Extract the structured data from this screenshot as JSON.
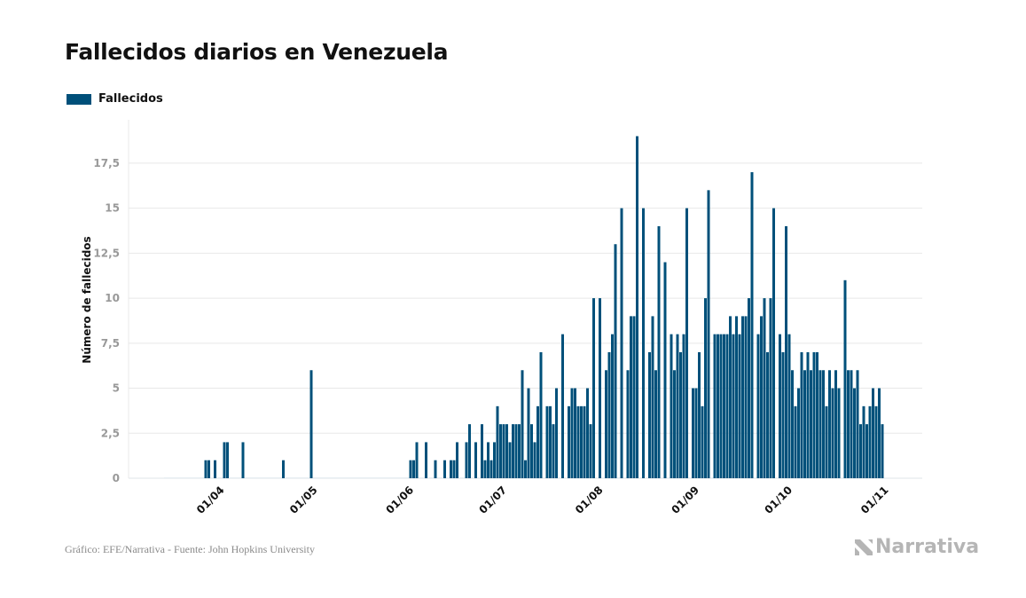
{
  "header": {
    "title": "Fallecidos diarios en Venezuela"
  },
  "footer": {
    "source": "Gráfico: EFE/Narrativa - Fuente: John Hopkins University",
    "logo": "Narrativa"
  },
  "colors": {
    "bar": "#00507a",
    "grid": "#e8e8e8",
    "tick_text": "#999999"
  },
  "chart_data": {
    "type": "bar",
    "title": "Fallecidos diarios en Venezuela",
    "xlabel": "",
    "ylabel": "Número de fallecidos",
    "legend": {
      "position": "top-left",
      "entries": [
        "Fallecidos"
      ]
    },
    "grid": true,
    "ylim": [
      0,
      19
    ],
    "yticks": [
      {
        "v": 0,
        "label": "0"
      },
      {
        "v": 2.5,
        "label": "2,5"
      },
      {
        "v": 5,
        "label": "5"
      },
      {
        "v": 7.5,
        "label": "7,5"
      },
      {
        "v": 10,
        "label": "10"
      },
      {
        "v": 12.5,
        "label": "12,5"
      },
      {
        "v": 15,
        "label": "15"
      },
      {
        "v": 17.5,
        "label": "17,5"
      }
    ],
    "xticks": [
      {
        "month": "04",
        "day": 1,
        "label": "01/04"
      },
      {
        "month": "05",
        "day": 1,
        "label": "01/05"
      },
      {
        "month": "06",
        "day": 1,
        "label": "01/06"
      },
      {
        "month": "07",
        "day": 1,
        "label": "01/07"
      },
      {
        "month": "08",
        "day": 1,
        "label": "01/08"
      },
      {
        "month": "09",
        "day": 1,
        "label": "01/09"
      },
      {
        "month": "10",
        "day": 1,
        "label": "01/10"
      },
      {
        "month": "11",
        "day": 1,
        "label": "01/11"
      }
    ],
    "series": [
      {
        "name": "Fallecidos",
        "daily": [
          {
            "month": "03",
            "first_day": 13,
            "values": [
              0,
              0,
              0,
              0,
              0,
              0,
              0,
              0,
              0,
              0,
              0,
              0,
              0,
              1,
              1,
              0,
              1,
              0,
              0
            ]
          },
          {
            "month": "04",
            "first_day": 1,
            "values": [
              2,
              2,
              0,
              0,
              0,
              0,
              2,
              0,
              0,
              0,
              0,
              0,
              0,
              0,
              0,
              0,
              0,
              0,
              0,
              1,
              0,
              0,
              0,
              0,
              0,
              0,
              0,
              0,
              6,
              0
            ]
          },
          {
            "month": "05",
            "first_day": 1,
            "values": [
              0,
              0,
              0,
              0,
              0,
              0,
              0,
              0,
              0,
              0,
              0,
              0,
              0,
              0,
              0,
              0,
              0,
              0,
              0,
              0,
              0,
              0,
              0,
              0,
              0,
              0,
              0,
              0,
              0,
              0,
              1
            ]
          },
          {
            "month": "06",
            "first_day": 1,
            "values": [
              1,
              2,
              0,
              0,
              2,
              0,
              0,
              1,
              0,
              0,
              1,
              0,
              1,
              1,
              2,
              0,
              0,
              2,
              3,
              0,
              2,
              0,
              3,
              1,
              2,
              1,
              2,
              4,
              3,
              3
            ]
          },
          {
            "month": "07",
            "first_day": 1,
            "values": [
              3,
              2,
              3,
              3,
              3,
              6,
              1,
              5,
              3,
              2,
              4,
              7,
              0,
              4,
              4,
              3,
              5,
              0,
              8,
              0,
              4,
              5,
              5,
              4,
              4,
              4,
              5,
              3,
              10,
              0,
              10
            ]
          },
          {
            "month": "08",
            "first_day": 1,
            "values": [
              0,
              6,
              7,
              8,
              13,
              0,
              15,
              0,
              6,
              9,
              9,
              19,
              0,
              15,
              0,
              7,
              9,
              6,
              14,
              0,
              12,
              0,
              8,
              6,
              8,
              7,
              8,
              15,
              0,
              5,
              5
            ]
          },
          {
            "month": "09",
            "first_day": 1,
            "values": [
              7,
              4,
              10,
              16,
              0,
              8,
              8,
              8,
              8,
              8,
              9,
              8,
              9,
              8,
              9,
              9,
              10,
              17,
              0,
              8,
              9,
              10,
              7,
              10,
              15,
              0,
              8,
              7,
              14,
              8
            ]
          },
          {
            "month": "10",
            "first_day": 1,
            "values": [
              6,
              4,
              5,
              7,
              6,
              7,
              6,
              7,
              7,
              6,
              6,
              4,
              6,
              5,
              6,
              5,
              0,
              11,
              6,
              6,
              5,
              6,
              3,
              4,
              3,
              4,
              5,
              4,
              5,
              3
            ]
          }
        ]
      }
    ]
  }
}
